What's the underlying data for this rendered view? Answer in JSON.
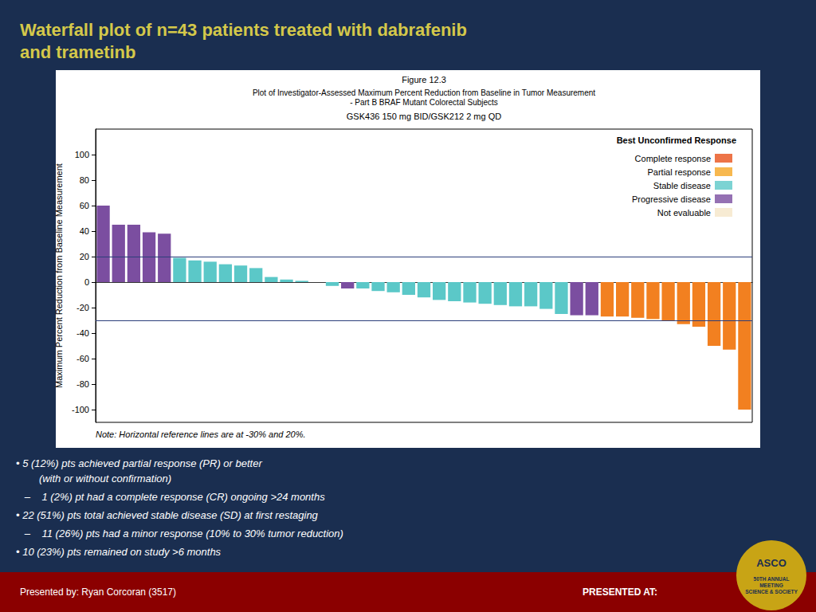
{
  "chart_data": {
    "type": "bar",
    "title": "Waterfall plot of n=43 patients treated with dabrafenib\nand trametinb",
    "title_color": "#d4c84a",
    "background": "#1a2e50",
    "plot_background": "#ffffff",
    "figure_title": "Figure 12.3",
    "subtitle": "Plot of Investigator-Assessed Maximum Percent Reduction from Baseline in Tumor Measurement\n- Part B BRAF Mutant Colorectal Subjects",
    "dose_label": "GSK436 150 mg BID/GSK212 2 mg QD",
    "ylabel": "Maximum Percent Reduction from Baseline Measurement",
    "note": "Note: Horizontal reference lines are at -30% and 20%.",
    "values": [
      60,
      45,
      45,
      39,
      38,
      19,
      17,
      16,
      14,
      13,
      11,
      4,
      2,
      1,
      0,
      -3,
      -5,
      -5,
      -7,
      -8,
      -10,
      -12,
      -14,
      -15,
      -16,
      -17,
      -18,
      -19,
      -19,
      -21,
      -25,
      -26,
      -26,
      -27,
      -27,
      -28,
      -29,
      -30,
      -33,
      -35,
      -50,
      -53,
      -100
    ],
    "colors": [
      "#7B4EA0",
      "#7B4EA0",
      "#7B4EA0",
      "#7B4EA0",
      "#7B4EA0",
      "#5BC8C8",
      "#5BC8C8",
      "#5BC8C8",
      "#5BC8C8",
      "#5BC8C8",
      "#5BC8C8",
      "#5BC8C8",
      "#5BC8C8",
      "#5BC8C8",
      "#5BC8C8",
      "#5BC8C8",
      "#7B4EA0",
      "#5BC8C8",
      "#5BC8C8",
      "#5BC8C8",
      "#5BC8C8",
      "#5BC8C8",
      "#5BC8C8",
      "#5BC8C8",
      "#5BC8C8",
      "#5BC8C8",
      "#5BC8C8",
      "#5BC8C8",
      "#5BC8C8",
      "#5BC8C8",
      "#5BC8C8",
      "#7B4EA0",
      "#7B4EA0",
      "#F28020",
      "#F28020",
      "#F28020",
      "#F28020",
      "#F28020",
      "#F28020",
      "#F28020",
      "#F28020",
      "#F28020",
      "#F28020"
    ],
    "ylim": [
      -110,
      120
    ],
    "yticks": [
      -100,
      -80,
      -60,
      -40,
      -20,
      0,
      20,
      40,
      60,
      80,
      100
    ],
    "reference_lines": [
      {
        "value": 20,
        "color": "#2c3e7a"
      },
      {
        "value": -30,
        "color": "#2c3e7a"
      }
    ],
    "legend_title": "Best Unconfirmed Response",
    "legend_entries": [
      {
        "name": "Complete response",
        "color": "#E8511A"
      },
      {
        "name": "Partial response",
        "color": "#F5A623"
      },
      {
        "name": "Stable disease",
        "color": "#5BC8C8"
      },
      {
        "name": "Progressive disease",
        "color": "#7B4EA0"
      },
      {
        "name": "Not evaluable",
        "color": "#F5E6C8"
      }
    ],
    "legend": "upper right",
    "grid": false,
    "tick_labels": "y",
    "bullets": [
      "• 5 (12%) pts achieved partial response (PR) or better\n        (with or without confirmation)",
      "   –    1 (2%) pt had a complete response (CR) ongoing >24 months",
      "• 22 (51%) pts total achieved stable disease (SD) at first restaging",
      "   –    11 (26%) pts had a minor response (10% to 30% tumor reduction)",
      "• 10 (23%) pts remained on study >6 months"
    ],
    "footer": {
      "left": "Presented by: Ryan Corcoran (3517)",
      "right": "PRESENTED AT:",
      "color": "#8B0000"
    },
    "logo": {
      "texts": [
        "ASCO",
        "50TH ANNUAL\nMEETING\nSCIENCE & SOCIETY"
      ],
      "color": "#C8A415",
      "text_color": "#1a2e50"
    }
  }
}
